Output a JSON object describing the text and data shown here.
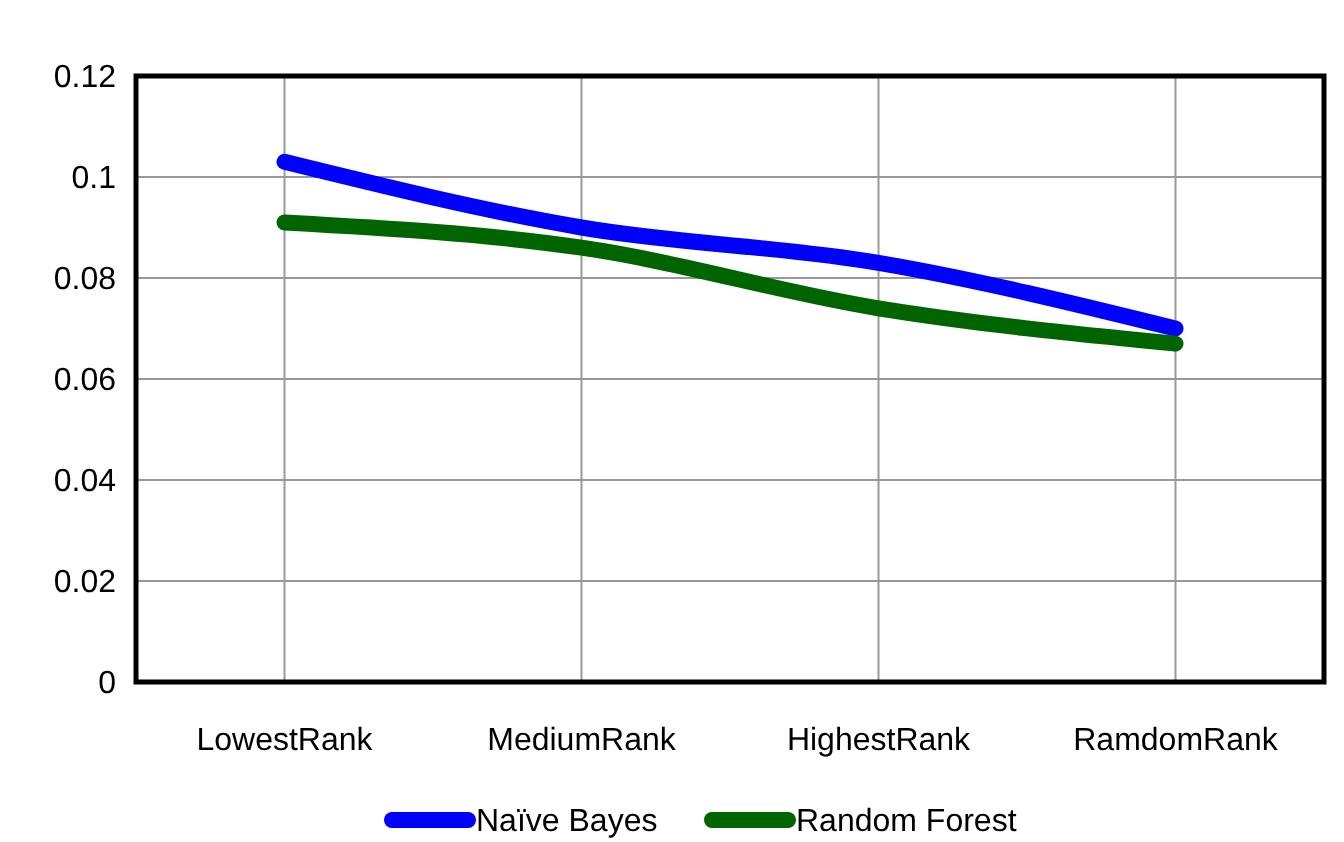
{
  "chart_data": {
    "type": "line",
    "categories": [
      "LowestRank",
      "MediumRank",
      "HighestRank",
      "RamdomRank"
    ],
    "series": [
      {
        "name": "Naïve Bayes",
        "color": "#0000ff",
        "values": [
          0.103,
          0.09,
          0.083,
          0.07
        ]
      },
      {
        "name": "Random Forest",
        "color": "#006400",
        "values": [
          0.091,
          0.086,
          0.074,
          0.067
        ]
      }
    ],
    "ylim": [
      0,
      0.12
    ],
    "yticks": [
      0,
      0.02,
      0.04,
      0.06,
      0.08,
      0.1,
      0.12
    ],
    "grid": true,
    "legend": "bottom",
    "marker": "none",
    "line_style": "solid"
  }
}
